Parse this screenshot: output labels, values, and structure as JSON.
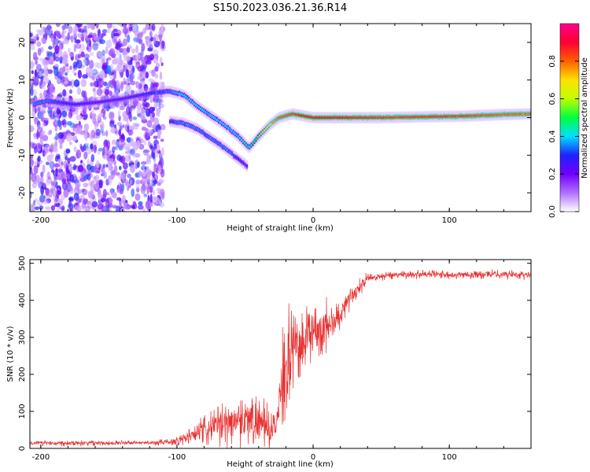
{
  "title": "S150.2023.036.21.36.R14",
  "chart_data": [
    {
      "type": "heatmap",
      "xlabel": "Height of straight line (km)",
      "ylabel": "Frequency (Hz)",
      "xlim": [
        -208,
        160
      ],
      "ylim": [
        -25,
        25
      ],
      "xticks": [
        -200,
        -100,
        0,
        100
      ],
      "xtick_labels": [
        "-200",
        "-100",
        "0",
        "100"
      ],
      "yticks": [
        -20,
        -10,
        0,
        10,
        20
      ],
      "ytick_labels": [
        "-20",
        "-10",
        "0",
        "10",
        "20"
      ],
      "colorbar": {
        "label": "Normalized spectral amplitude",
        "range": [
          0,
          1
        ],
        "ticks": [
          0.0,
          0.2,
          0.4,
          0.6,
          0.8
        ],
        "tick_labels": [
          "0.0",
          "0.2",
          "0.4",
          "0.6",
          "0.8"
        ],
        "colors": [
          "#ffffff",
          "#b070ff",
          "#7000ff",
          "#2020ff",
          "#00e0ff",
          "#00ff40",
          "#c0ff00",
          "#ffe000",
          "#ff6000",
          "#ff0030",
          "#ff0090"
        ]
      },
      "main_trace": {
        "x": [
          -205,
          -195,
          -185,
          -175,
          -160,
          -140,
          -120,
          -105,
          -95,
          -85,
          -75,
          -65,
          -55,
          -47,
          -40,
          -32,
          -25,
          -15,
          -5,
          0,
          20,
          50,
          80,
          110,
          140,
          160
        ],
        "y": [
          3.5,
          4.5,
          4,
          3.5,
          4,
          5,
          6.5,
          7,
          6,
          3,
          0.5,
          -2,
          -5,
          -8,
          -5,
          -2,
          0,
          1,
          0.3,
          0,
          0,
          0,
          0.2,
          0.4,
          0.8,
          1
        ],
        "amplitude": [
          0.35,
          0.35,
          0.3,
          0.28,
          0.25,
          0.25,
          0.3,
          0.35,
          0.4,
          0.4,
          0.4,
          0.4,
          0.4,
          0.45,
          0.55,
          0.7,
          0.8,
          0.85,
          0.9,
          0.9,
          0.9,
          0.85,
          0.85,
          0.85,
          0.8,
          0.8
        ]
      },
      "secondary_trace": {
        "x": [
          -105,
          -95,
          -85,
          -75,
          -65,
          -55,
          -48
        ],
        "y": [
          -1,
          -1.5,
          -3,
          -5.5,
          -8,
          -11,
          -13
        ],
        "amplitude": [
          0.3,
          0.35,
          0.35,
          0.35,
          0.35,
          0.3,
          0.25
        ]
      },
      "noise_region_x": [
        -208,
        -110
      ]
    },
    {
      "type": "line",
      "xlabel": "Height of straight line (km)",
      "ylabel": "SNR (10 * v/v)",
      "xlim": [
        -208,
        160
      ],
      "ylim": [
        0,
        510
      ],
      "xticks": [
        -200,
        -100,
        0,
        100
      ],
      "xtick_labels": [
        "-200",
        "-100",
        "0",
        "100"
      ],
      "yticks": [
        0,
        100,
        200,
        300,
        400,
        500
      ],
      "ytick_labels": [
        "0",
        "100",
        "200",
        "300",
        "400",
        "500"
      ],
      "line_color": "#e8302f",
      "series": [
        {
          "x": [
            -208,
            -180,
            -150,
            -120,
            -105,
            -95,
            -85,
            -75,
            -65,
            -55,
            -45,
            -35,
            -28,
            -22,
            -18,
            -12,
            -5,
            0,
            5,
            10,
            18,
            25,
            30,
            35,
            40,
            50,
            60,
            80,
            100,
            120,
            140,
            160
          ],
          "y": [
            15,
            15,
            15,
            15,
            17,
            25,
            40,
            55,
            65,
            80,
            80,
            60,
            50,
            190,
            250,
            280,
            300,
            310,
            320,
            330,
            350,
            400,
            420,
            440,
            460,
            465,
            470,
            470,
            470,
            470,
            470,
            470
          ],
          "spread": [
            8,
            8,
            7,
            6,
            10,
            20,
            35,
            50,
            60,
            70,
            70,
            60,
            50,
            120,
            130,
            110,
            90,
            80,
            80,
            70,
            55,
            35,
            25,
            20,
            15,
            12,
            12,
            12,
            12,
            12,
            12,
            12
          ]
        }
      ]
    }
  ]
}
